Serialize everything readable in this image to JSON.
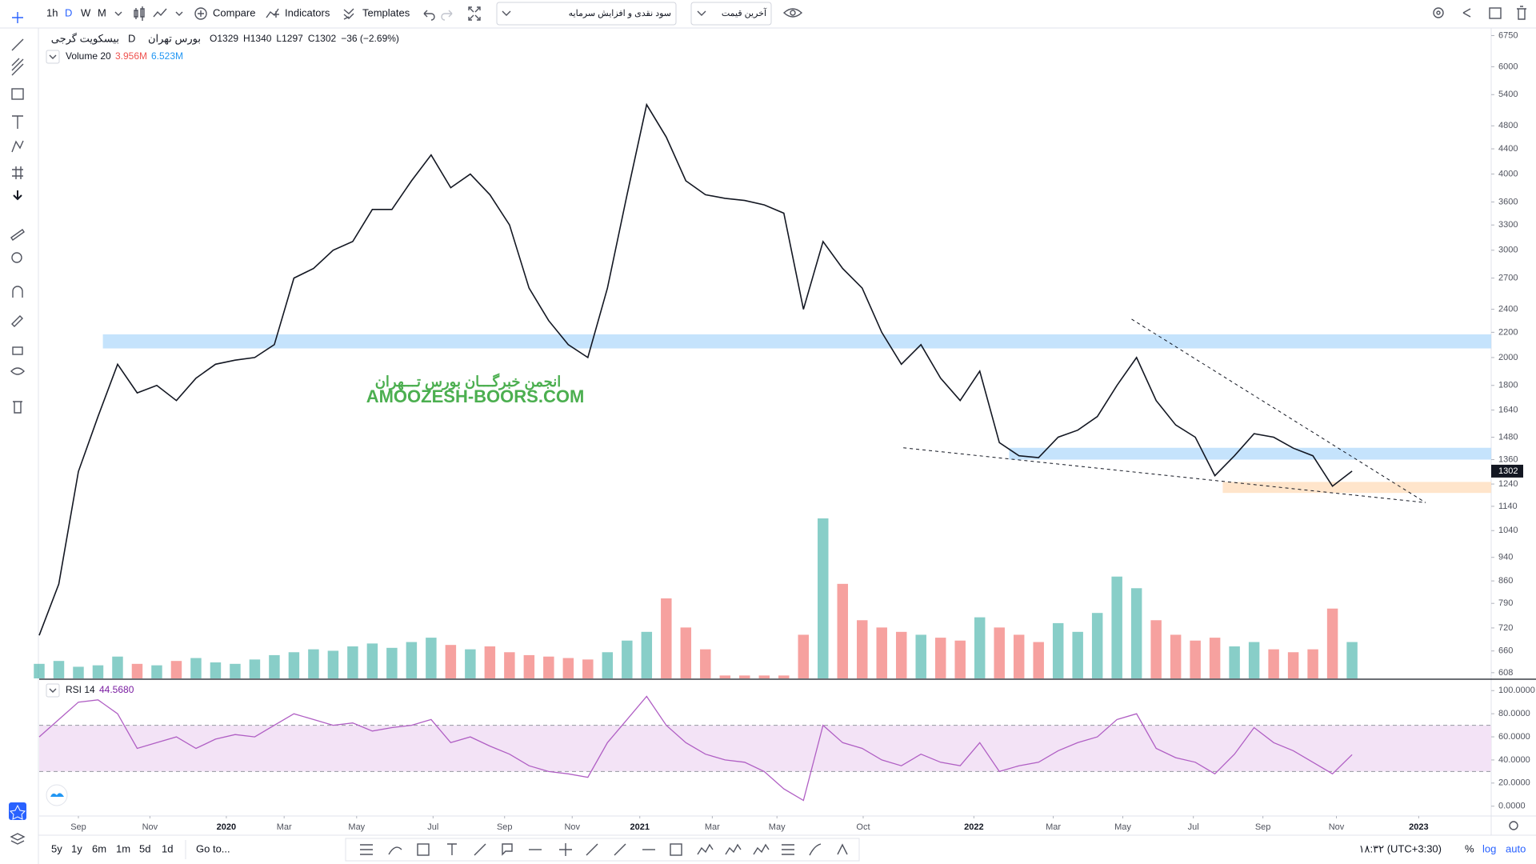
{
  "toolbar": {
    "intervals": [
      "1h",
      "D",
      "W",
      "M"
    ],
    "compare": "Compare",
    "indicators": "Indicators",
    "templates": "Templates",
    "dividend_select": "سود نقدی و افزایش سرمایه",
    "price_select": "آخرین قیمت"
  },
  "legend": {
    "symbol": "بیسکویت گرجی",
    "interval": "D",
    "exchange": "بورس تهران",
    "open_label": "O",
    "open": 1329,
    "high_label": "H",
    "high": 1340,
    "low_label": "L",
    "low": 1297,
    "close_label": "C",
    "close": 1302,
    "change": "−36 (−2.69%)",
    "volume_study": "Volume 20",
    "volume": "3.956M",
    "volume_ma": "6.523M",
    "rsi_study": "RSI 14",
    "rsi": "44.5680"
  },
  "watermark": {
    "persian": "انجمن خبرگـــان بورس تـــهران",
    "latin": "AMOOZESH-BOORS.COM"
  },
  "bottom_bar": {
    "ranges": [
      "5y",
      "1y",
      "6m",
      "1m",
      "5d",
      "1d"
    ],
    "goto": "Go to...",
    "clock": "۱۸:۳۲ (UTC+3:30)",
    "percent": "%",
    "log": "log",
    "auto": "auto"
  },
  "chart_data": [
    {
      "type": "line",
      "log": true,
      "color": "#131722",
      "x": [
        0,
        1,
        2,
        3,
        4,
        5,
        6,
        7,
        8,
        9,
        10,
        11,
        12,
        13,
        14,
        15,
        16,
        17,
        18,
        19,
        20,
        21,
        22,
        23,
        24,
        25,
        26,
        27,
        28,
        29,
        30,
        31,
        32,
        33,
        34,
        35,
        36,
        37,
        38,
        39,
        40,
        41,
        42,
        43,
        44,
        45,
        46,
        47,
        48,
        49,
        50,
        51,
        52,
        53,
        54,
        55,
        56,
        57,
        58,
        59,
        60,
        61,
        62,
        63,
        64,
        65,
        66,
        67
      ],
      "series": [
        {
          "name": "بیسکویت گرجی",
          "color": "#131722",
          "values": [
            700,
            850,
            1300,
            1600,
            1950,
            1750,
            1800,
            1700,
            1850,
            1950,
            1980,
            2000,
            2100,
            2700,
            2800,
            3000,
            3100,
            3500,
            3500,
            3900,
            4300,
            3800,
            4000,
            3700,
            3300,
            2600,
            2300,
            2100,
            2000,
            2600,
            3700,
            5200,
            4600,
            3900,
            3700,
            3650,
            3620,
            3560,
            3450,
            2400,
            3100,
            2800,
            2600,
            2200,
            1950,
            2100,
            1850,
            1700,
            1900,
            1450,
            1380,
            1370,
            1480,
            1520,
            1600,
            1800,
            2000,
            1700,
            1550,
            1480,
            1280,
            1380,
            1500,
            1480,
            1420,
            1380,
            1230,
            1302
          ]
        }
      ],
      "xlim": [
        0,
        74.1
      ],
      "ylim": [
        595,
        6925
      ],
      "yticks": [
        608,
        660,
        720,
        790,
        860,
        940,
        1040,
        1140,
        1240,
        1360,
        1480,
        1640,
        1800,
        2000,
        2200,
        2400,
        2700,
        3000,
        3300,
        3600,
        4000,
        4400,
        4800,
        5400,
        6000,
        6750
      ],
      "zones": [
        {
          "from": 2070,
          "to": 2183,
          "start": 3.25,
          "color": "#bbdefb"
        },
        {
          "from": 1360,
          "to": 1422,
          "start": 49.5,
          "color": "#bbdefb"
        },
        {
          "from": 1199,
          "to": 1250,
          "start": 60.4,
          "color": "#ffe0c2"
        }
      ],
      "trendlines": [
        {
          "x": [
            55.75,
            70.75
          ],
          "y": [
            2312,
            1156
          ]
        },
        {
          "x": [
            44.1,
            70.75
          ],
          "y": [
            1422,
            1156
          ]
        }
      ]
    },
    {
      "type": "bar",
      "up_color": "#26a69a",
      "down_color": "#ef5350",
      "ma_color": "#90caf9",
      "x": [
        0,
        1,
        2,
        3,
        4,
        5,
        6,
        7,
        8,
        9,
        10,
        11,
        12,
        13,
        14,
        15,
        16,
        17,
        18,
        19,
        20,
        21,
        22,
        23,
        24,
        25,
        26,
        27,
        28,
        29,
        30,
        31,
        32,
        33,
        34,
        35,
        36,
        37,
        38,
        39,
        40,
        41,
        42,
        43,
        44,
        45,
        46,
        47,
        48,
        49,
        50,
        51,
        52,
        53,
        54,
        55,
        56,
        57,
        58,
        59,
        60,
        61,
        62,
        63,
        64,
        65,
        66,
        67
      ],
      "values": [
        1,
        1.2,
        0.8,
        0.9,
        1.5,
        1,
        0.9,
        1.2,
        1.4,
        1.1,
        1,
        1.3,
        1.6,
        1.8,
        2,
        1.9,
        2.2,
        2.4,
        2.1,
        2.5,
        2.8,
        2.3,
        2,
        2.2,
        1.8,
        1.6,
        1.5,
        1.4,
        1.3,
        1.8,
        2.6,
        3.2,
        5.5,
        3.5,
        2,
        0.2,
        0.2,
        0.2,
        0.2,
        3,
        11,
        6.5,
        4,
        3.5,
        3.2,
        3,
        2.8,
        2.6,
        4.2,
        3.5,
        3,
        2.5,
        3.8,
        3.2,
        4.5,
        7,
        6.2,
        4,
        3,
        2.6,
        2.8,
        2.2,
        2.5,
        2,
        1.8,
        2,
        4.8,
        2.5
      ]
    },
    {
      "type": "line",
      "color": "#b05fc4",
      "band": [
        30,
        70
      ],
      "band_color": "#f3e3f6",
      "x": [
        0,
        1,
        2,
        3,
        4,
        5,
        6,
        7,
        8,
        9,
        10,
        11,
        12,
        13,
        14,
        15,
        16,
        17,
        18,
        19,
        20,
        21,
        22,
        23,
        24,
        25,
        26,
        27,
        28,
        29,
        30,
        31,
        32,
        33,
        34,
        35,
        36,
        37,
        38,
        39,
        40,
        41,
        42,
        43,
        44,
        45,
        46,
        47,
        48,
        49,
        50,
        51,
        52,
        53,
        54,
        55,
        56,
        57,
        58,
        59,
        60,
        61,
        62,
        63,
        64,
        65,
        66,
        67
      ],
      "values": [
        60,
        75,
        90,
        92,
        80,
        50,
        55,
        60,
        50,
        58,
        62,
        60,
        70,
        80,
        75,
        70,
        72,
        65,
        68,
        70,
        75,
        55,
        60,
        52,
        45,
        35,
        30,
        28,
        25,
        55,
        75,
        95,
        70,
        55,
        45,
        40,
        38,
        30,
        15,
        5,
        70,
        55,
        50,
        40,
        35,
        45,
        38,
        35,
        55,
        30,
        35,
        38,
        48,
        55,
        60,
        75,
        80,
        50,
        42,
        38,
        28,
        45,
        68,
        55,
        48,
        38,
        28,
        44.568
      ],
      "xlim": [
        0,
        74.1
      ],
      "ylim": [
        -8.5,
        108.5
      ],
      "yticks": [
        {
          "value": 0,
          "label": "0.0000"
        },
        {
          "value": 20,
          "label": "20.0000"
        },
        {
          "value": 40,
          "label": "40.0000"
        },
        {
          "value": 60,
          "label": "60.0000"
        },
        {
          "value": 80,
          "label": "80.0000"
        },
        {
          "value": 100,
          "label": "100.0000"
        }
      ],
      "xticks": [
        {
          "value": 2,
          "label": "Sep"
        },
        {
          "value": 5.65,
          "label": "Nov"
        },
        {
          "value": 9.55,
          "label": "2020"
        },
        {
          "value": 12.5,
          "label": "Mar"
        },
        {
          "value": 16.2,
          "label": "May"
        },
        {
          "value": 20.1,
          "label": "Jul"
        },
        {
          "value": 23.75,
          "label": "Sep"
        },
        {
          "value": 27.2,
          "label": "Nov"
        },
        {
          "value": 30.65,
          "label": "2021"
        },
        {
          "value": 34.35,
          "label": "Mar"
        },
        {
          "value": 37.65,
          "label": "May"
        },
        {
          "value": 42.05,
          "label": "Oct"
        },
        {
          "value": 47.7,
          "label": "2022"
        },
        {
          "value": 51.75,
          "label": "Mar"
        },
        {
          "value": 55.3,
          "label": "May"
        },
        {
          "value": 58.9,
          "label": "Jul"
        },
        {
          "value": 62.45,
          "label": "Sep"
        },
        {
          "value": 66.2,
          "label": "Nov"
        },
        {
          "value": 70.4,
          "label": "2023"
        }
      ]
    }
  ]
}
